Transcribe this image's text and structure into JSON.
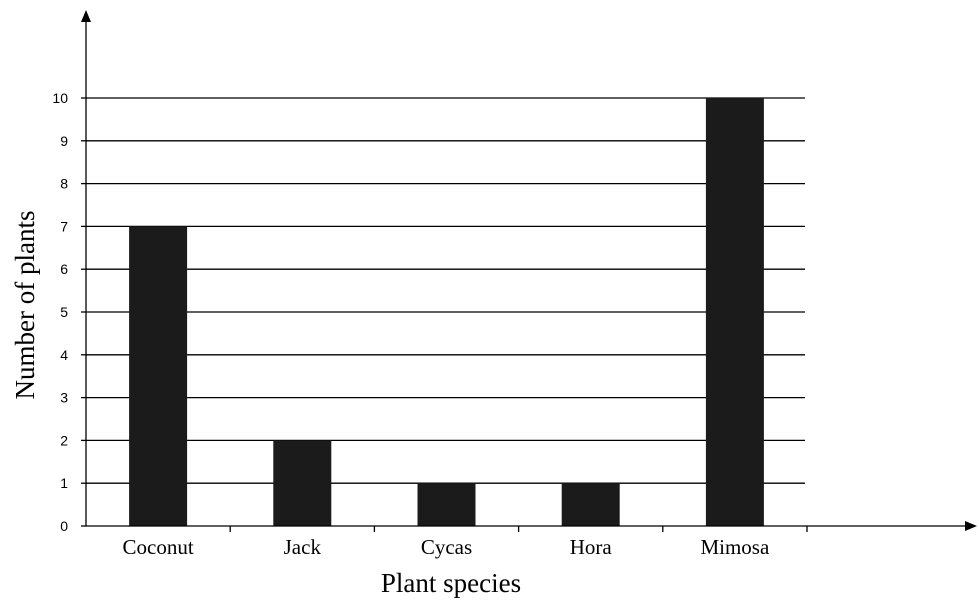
{
  "chart_data": {
    "type": "bar",
    "categories": [
      "Coconut",
      "Jack",
      "Cycas",
      "Hora",
      "Mimosa"
    ],
    "values": [
      7,
      2,
      1,
      1,
      10
    ],
    "title": "",
    "xlabel": "Plant species",
    "ylabel": "Number of plants",
    "ylim": [
      0,
      10
    ],
    "yticks": [
      "0",
      "1",
      "2",
      "3",
      "4",
      "5",
      "6",
      "7",
      "8",
      "9",
      "10"
    ],
    "grid": true,
    "legend": "none",
    "bar_color": "#1b1b1b"
  }
}
